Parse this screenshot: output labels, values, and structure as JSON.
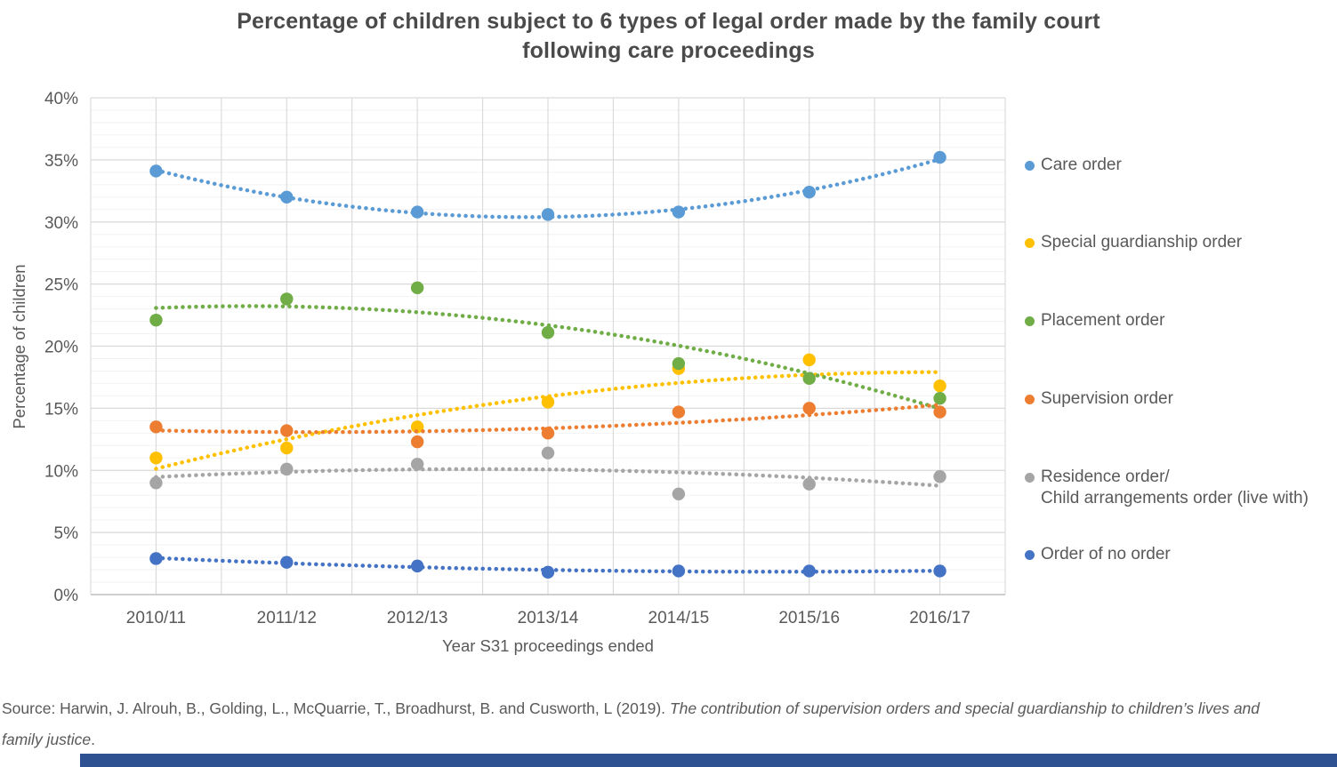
{
  "title": "Percentage of children subject to 6 types of legal order made by the family court\nfollowing care proceedings",
  "chart_data": {
    "type": "scatter",
    "categories": [
      "2010/11",
      "2011/12",
      "2012/13",
      "2013/14",
      "2014/15",
      "2015/16",
      "2016/17"
    ],
    "series": [
      {
        "name": "Care order",
        "color": "#5B9BD5",
        "values": [
          34.1,
          32.0,
          30.8,
          30.6,
          30.8,
          32.4,
          35.2
        ],
        "trendline": {
          "type": "polynomial",
          "order": 2,
          "style": "dotted"
        }
      },
      {
        "name": "Special guardianship order",
        "color": "#FFC000",
        "values": [
          11.0,
          11.8,
          13.5,
          15.5,
          18.2,
          18.9,
          16.8
        ],
        "trendline": {
          "type": "polynomial",
          "order": 2,
          "style": "dotted"
        }
      },
      {
        "name": "Placement order",
        "color": "#70AD47",
        "values": [
          22.1,
          23.8,
          24.7,
          21.1,
          18.6,
          17.4,
          15.8
        ],
        "trendline": {
          "type": "polynomial",
          "order": 2,
          "style": "dotted"
        }
      },
      {
        "name": "Supervision order",
        "color": "#ED7D31",
        "values": [
          13.5,
          13.2,
          12.3,
          13.0,
          14.7,
          15.0,
          14.7
        ],
        "trendline": {
          "type": "polynomial",
          "order": 2,
          "style": "dotted"
        }
      },
      {
        "name": "Residence order/\nChild arrangements order (live with)",
        "color": "#A5A5A5",
        "values": [
          9.0,
          10.1,
          10.5,
          11.4,
          8.1,
          8.9,
          9.5
        ],
        "trendline": {
          "type": "polynomial",
          "order": 2,
          "style": "dotted"
        }
      },
      {
        "name": "Order of no order",
        "color": "#4472C4",
        "values": [
          2.9,
          2.6,
          2.3,
          1.8,
          1.9,
          1.9,
          1.9
        ],
        "trendline": {
          "type": "polynomial",
          "order": 2,
          "style": "dotted"
        }
      }
    ],
    "xlabel": "Year S31 proceedings ended",
    "ylabel": "Percentage of children",
    "ylim": [
      0,
      40
    ],
    "y_major_step": 5,
    "y_minor_step": 1,
    "y_tick_suffix": "%",
    "y_tick_labels": [
      "0%",
      "5%",
      "10%",
      "15%",
      "20%",
      "25%",
      "30%",
      "35%",
      "40%"
    ],
    "grid": true,
    "legend_position": "right"
  },
  "colors": {
    "grid_minor": "#F2F2F2",
    "grid_major": "#D9D9D9",
    "axis_line": "#BFBFBF",
    "text": "#595959",
    "title_text": "#4A4A4A",
    "footer_bar": "#2E5191"
  },
  "source": {
    "prefix": "Source: Harwin, J. Alrouh, B., Golding, L., McQuarrie, T., Broadhurst, B. and Cusworth, L (2019). ",
    "italic": "The contribution of supervision orders and special guardianship to children’s lives and family justice",
    "suffix": "."
  }
}
